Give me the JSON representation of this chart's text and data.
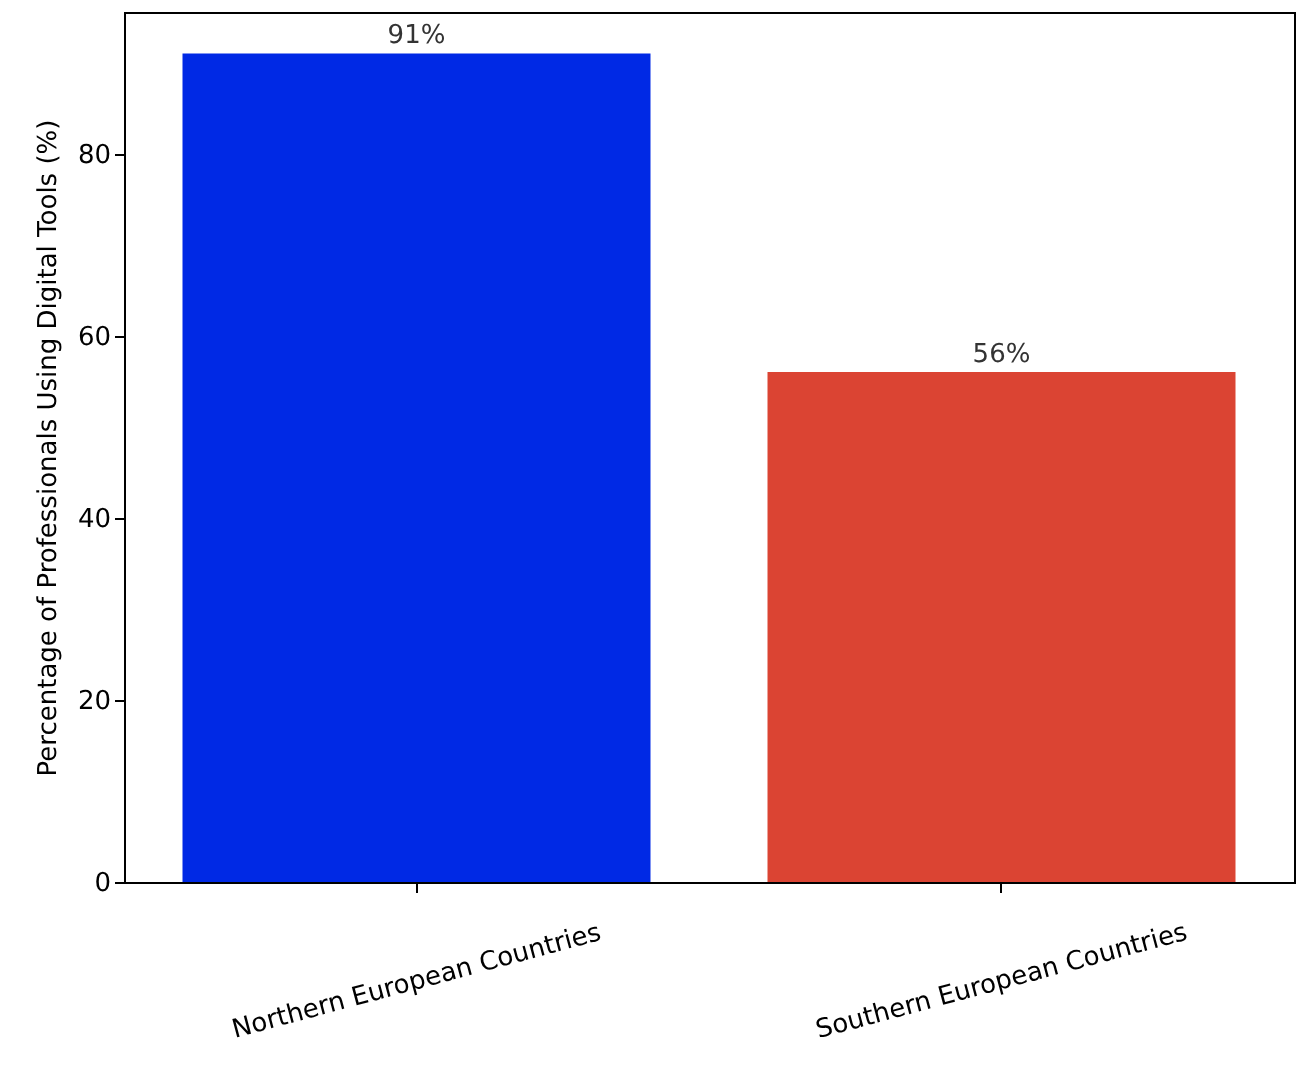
{
  "chart_data": {
    "type": "bar",
    "categories": [
      "Northern European Countries",
      "Southern European Countries"
    ],
    "values": [
      91,
      56
    ],
    "colors": [
      "#0029e5",
      "#db4433"
    ],
    "value_labels": [
      "91%",
      "56%"
    ],
    "ylabel": "Percentage of Professionals Using Digital Tools (%)",
    "ylim": [
      0,
      95.55
    ],
    "yticks": [
      0,
      20,
      40,
      60,
      80
    ]
  }
}
